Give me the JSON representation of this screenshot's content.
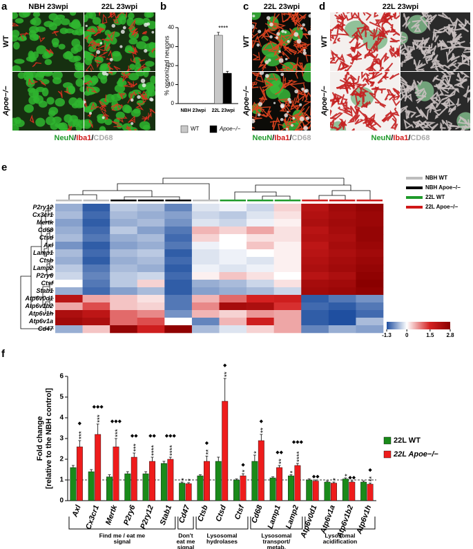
{
  "panels": {
    "a": {
      "label": "a",
      "columns": [
        "NBH 23wpi",
        "22L 23wpi"
      ],
      "rows": [
        "WT",
        "Apoe−/−"
      ],
      "stain": [
        "NeuN",
        "/",
        "Iba1",
        "/",
        "CD68"
      ]
    },
    "c": {
      "label": "c",
      "title": "22L 23wpi",
      "rows": [
        "WT",
        "Apoe−/−"
      ],
      "stain": [
        "NeuN",
        "/",
        "Iba1",
        "/",
        "CD68"
      ]
    },
    "d": {
      "label": "d",
      "title": "22L 23wpi",
      "rows": [
        "WT",
        "Apoe−/−"
      ],
      "stain": [
        "NeuN",
        "/",
        "Iba1",
        "/",
        "CD68"
      ]
    }
  },
  "chart_data": [
    {
      "type": "bar",
      "panel": "b",
      "ylabel": "% opsonized neurons",
      "categories": [
        "NBH 23wpi",
        "22L 23wpi"
      ],
      "series": [
        {
          "name": "WT",
          "color": "#c8c8c8",
          "values": [
            0,
            36
          ],
          "errors": [
            0,
            1.5
          ]
        },
        {
          "name": "Apoe−/−",
          "color": "#000000",
          "values": [
            0,
            16
          ],
          "errors": [
            0,
            1
          ]
        }
      ],
      "annotation": "****",
      "ylim": [
        0,
        40
      ],
      "yticks": [
        0,
        10,
        20,
        30,
        40
      ]
    },
    {
      "type": "heatmap",
      "panel": "e",
      "rows": [
        "P2ry12",
        "Cx3cr1",
        "Mertk",
        "Cd68",
        "Ctsd",
        "Axl",
        "Lamp1",
        "Ctsb",
        "Lamp2",
        "P2ry6",
        "Ctsf",
        "Stab1",
        "Atp6v0d1",
        "Atp6v1b2",
        "Atp6v1h",
        "Atp6v1a",
        "Cd47"
      ],
      "values": [
        [
          -0.6,
          -1.2,
          -0.4,
          -0.5,
          -0.9,
          -0.2,
          -0.1,
          -0.3,
          0.3,
          2.0,
          2.4,
          2.6
        ],
        [
          -0.5,
          -1.1,
          -0.5,
          -0.6,
          -0.7,
          -0.3,
          -0.4,
          -0.2,
          0.2,
          2.1,
          2.3,
          2.5
        ],
        [
          -0.7,
          -1.2,
          -0.6,
          -0.5,
          -0.8,
          -0.2,
          -0.3,
          -0.1,
          0.1,
          2.2,
          2.4,
          2.5
        ],
        [
          -0.6,
          -1.1,
          -0.4,
          -0.7,
          -1.0,
          0.5,
          0.3,
          0.6,
          0.2,
          2.0,
          2.3,
          2.6
        ],
        [
          -0.5,
          -1.0,
          -0.6,
          -0.5,
          -1.1,
          0.3,
          0.0,
          0.2,
          0.2,
          2.1,
          2.2,
          2.6
        ],
        [
          -0.8,
          -1.2,
          -0.7,
          -0.6,
          -1.0,
          -0.1,
          0.0,
          0.4,
          0.1,
          1.9,
          2.3,
          2.5
        ],
        [
          -0.5,
          -1.1,
          -0.5,
          -0.4,
          -1.2,
          -0.2,
          -0.1,
          0.0,
          0.1,
          2.0,
          2.2,
          2.4
        ],
        [
          -0.6,
          -1.2,
          -0.6,
          -0.5,
          -1.1,
          -0.2,
          -0.1,
          -0.2,
          0.1,
          2.1,
          2.3,
          2.5
        ],
        [
          -0.4,
          -1.0,
          -0.5,
          -0.6,
          -1.2,
          -0.1,
          -0.2,
          -0.1,
          0.1,
          2.2,
          2.4,
          2.6
        ],
        [
          -0.3,
          -0.9,
          -0.4,
          -0.3,
          -1.1,
          0.1,
          0.4,
          0.2,
          0.0,
          2.0,
          2.2,
          2.7
        ],
        [
          0.0,
          -1.0,
          -0.4,
          0.3,
          -1.2,
          -0.6,
          -0.5,
          -0.3,
          0.2,
          2.3,
          2.4,
          2.8
        ],
        [
          -0.6,
          -1.1,
          -0.7,
          -0.5,
          -1.2,
          -0.7,
          -0.6,
          -0.5,
          -0.3,
          2.4,
          2.5,
          2.7
        ],
        [
          2.0,
          0.6,
          0.4,
          0.2,
          -1.0,
          0.5,
          1.0,
          1.5,
          1.6,
          -1.2,
          -1.0,
          -0.8
        ],
        [
          0.6,
          1.2,
          0.4,
          0.3,
          -1.0,
          0.8,
          2.3,
          2.2,
          1.4,
          -1.1,
          -1.2,
          -1.0
        ],
        [
          2.2,
          1.9,
          1.0,
          0.8,
          -0.8,
          0.5,
          0.3,
          0.7,
          0.6,
          -1.2,
          -1.3,
          -1.1
        ],
        [
          2.4,
          2.2,
          1.0,
          1.2,
          0.0,
          -0.9,
          0.5,
          1.6,
          0.6,
          -1.2,
          -1.3,
          -0.5
        ],
        [
          -0.6,
          0.4,
          2.6,
          1.6,
          2.7,
          -0.5,
          -0.2,
          0.3,
          0.6,
          -0.9,
          -0.6,
          -0.7
        ]
      ],
      "legend": [
        {
          "name": "NBH WT",
          "color": "#bdbdbd"
        },
        {
          "name": "NBH Apoe−/−",
          "color": "#000000"
        },
        {
          "name": "22L WT",
          "color": "#1e9a2a"
        },
        {
          "name": "22L Apoe−/−",
          "color": "#d01818"
        }
      ],
      "colorscale": [
        {
          "value": -1.3,
          "color": "#1f4fa0"
        },
        {
          "value": 0,
          "color": "#ffffff"
        },
        {
          "value": 1.5,
          "color": "#d42020"
        },
        {
          "value": 2.8,
          "color": "#8a0000"
        }
      ]
    },
    {
      "type": "bar",
      "panel": "f",
      "ylabel": [
        "Fold change",
        "[relative to the NBH control]"
      ],
      "categories": [
        "Axl",
        "Cx3cr1",
        "Mertk",
        "P2ry6",
        "P2ry12",
        "Stab1",
        "Cd47",
        "Ctsb",
        "Ctsd",
        "Ctsf",
        "Cd68",
        "Lamp1",
        "Lamp2",
        "Atp6v0d1",
        "Atp6v1a",
        "Atp6v1b2",
        "Atp6v1h"
      ],
      "series": [
        {
          "name": "22L WT",
          "color": "#1a8a1a",
          "values": [
            1.6,
            1.4,
            1.15,
            1.3,
            1.3,
            1.8,
            0.85,
            1.2,
            1.9,
            1.0,
            1.9,
            1.1,
            1.2,
            1.0,
            0.9,
            1.05,
            0.9
          ],
          "errors": [
            0.1,
            0.1,
            0.1,
            0.1,
            0.1,
            0.1,
            0.05,
            0.05,
            0.2,
            0.05,
            0.3,
            0.05,
            0.05,
            0.05,
            0.05,
            0.05,
            0.05
          ],
          "stars": [
            null,
            null,
            null,
            null,
            null,
            null,
            "*",
            null,
            null,
            null,
            "*",
            null,
            "*",
            null,
            null,
            "*",
            null
          ]
        },
        {
          "name": "22L Apoe−/−",
          "color": "#ee1c1c",
          "values": [
            2.6,
            3.2,
            2.6,
            2.1,
            1.9,
            2.0,
            0.82,
            1.9,
            4.8,
            1.2,
            2.9,
            1.6,
            1.7,
            0.95,
            0.85,
            0.9,
            0.8
          ],
          "errors": [
            0.3,
            0.5,
            0.4,
            0.2,
            0.2,
            0.1,
            0.05,
            0.25,
            1.1,
            0.1,
            0.3,
            0.1,
            0.1,
            0.05,
            0.05,
            0.05,
            0.05
          ],
          "stars": [
            "***",
            "***",
            "***",
            "***",
            "****",
            "****",
            "*",
            "**",
            "**",
            "*",
            "**",
            "**",
            "****",
            null,
            "*",
            null,
            "**"
          ],
          "diamonds": [
            "◆",
            "◆◆◆",
            "◆◆◆",
            "◆◆",
            "◆◆",
            "◆◆◆",
            null,
            "◆",
            "◆",
            "◆",
            "◆",
            "◆◆",
            "◆◆◆",
            "◆◆",
            null,
            "◆◆",
            "◆"
          ]
        }
      ],
      "hline": 1,
      "ylim": [
        0,
        6
      ],
      "yticks": [
        0,
        1,
        2,
        3,
        4,
        5,
        6
      ],
      "groups": [
        [
          "Find me / eat me",
          "signal"
        ],
        [
          "Don't",
          "eat me",
          "signal"
        ],
        [
          "Lysosomal",
          "hydrolases"
        ],
        [
          "Lysosomal",
          "transport/",
          "metab."
        ],
        [
          "Lysosomal",
          "acidification"
        ]
      ]
    }
  ]
}
